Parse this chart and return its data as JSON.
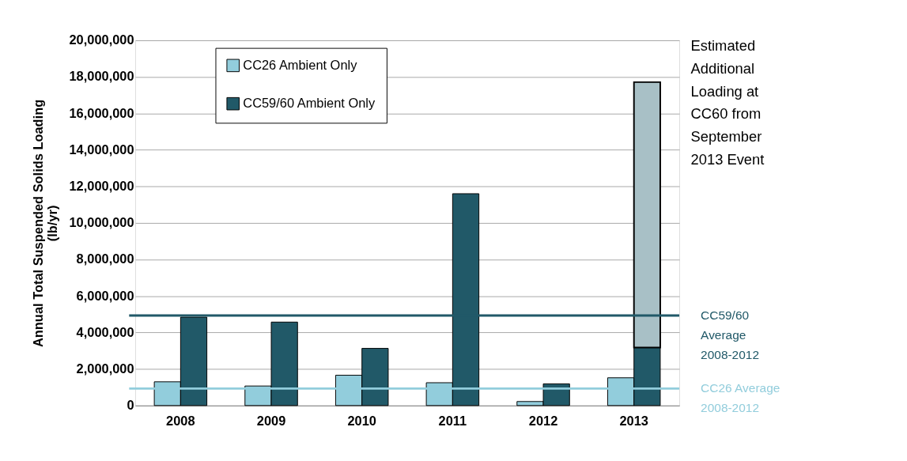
{
  "chart_data": {
    "type": "bar",
    "ylabel": "Annual Total Suspended Solids Loading\n(lb/yr)",
    "categories": [
      "2008",
      "2009",
      "2010",
      "2011",
      "2012",
      "2013"
    ],
    "series": [
      {
        "name": "CC26 Ambient Only",
        "color": "#92cddc",
        "values": [
          1300000,
          1070000,
          1660000,
          1250000,
          220000,
          1520000
        ]
      },
      {
        "name": "CC59/60 Ambient Only",
        "color": "#215968",
        "values": [
          4840000,
          4570000,
          3130000,
          11600000,
          1190000,
          3180000
        ]
      },
      {
        "color": "#a8c0c6",
        "base": [
          null,
          null,
          null,
          null,
          null,
          3180000
        ],
        "values": [
          null,
          null,
          null,
          null,
          null,
          14530000
        ]
      }
    ],
    "ylim": [
      0,
      20000000
    ],
    "yticks": [
      0,
      {
        "value": 2000000,
        "label": "2,000,000"
      },
      {
        "value": 4000000,
        "label": "4,000,000"
      },
      {
        "value": 6000000,
        "label": "6,000,000"
      },
      {
        "value": 8000000,
        "label": "8,000,000"
      },
      {
        "value": 10000000,
        "label": "10,000,000"
      },
      {
        "value": 12000000,
        "label": "12,000,000"
      },
      {
        "value": 14000000,
        "label": "14,000,000"
      },
      {
        "value": 16000000,
        "label": "16,000,000"
      },
      {
        "value": 18000000,
        "label": "18,000,000"
      },
      {
        "value": 20000000,
        "label": "20,000,000"
      }
    ],
    "ref_lines": [
      {
        "axis": "y",
        "value": 4930000,
        "label": "CC59/60\nAverage\n2008-2012",
        "color": "#215968"
      },
      {
        "axis": "y",
        "value": 930000,
        "label": "CC26 Average\n2008-2012",
        "color": "#92cddc"
      }
    ],
    "annotations": [
      "Estimated\nAdditional\nLoading at\nCC60 from\nSeptember\n2013 Event"
    ],
    "grid": "y",
    "legend": "top left"
  }
}
